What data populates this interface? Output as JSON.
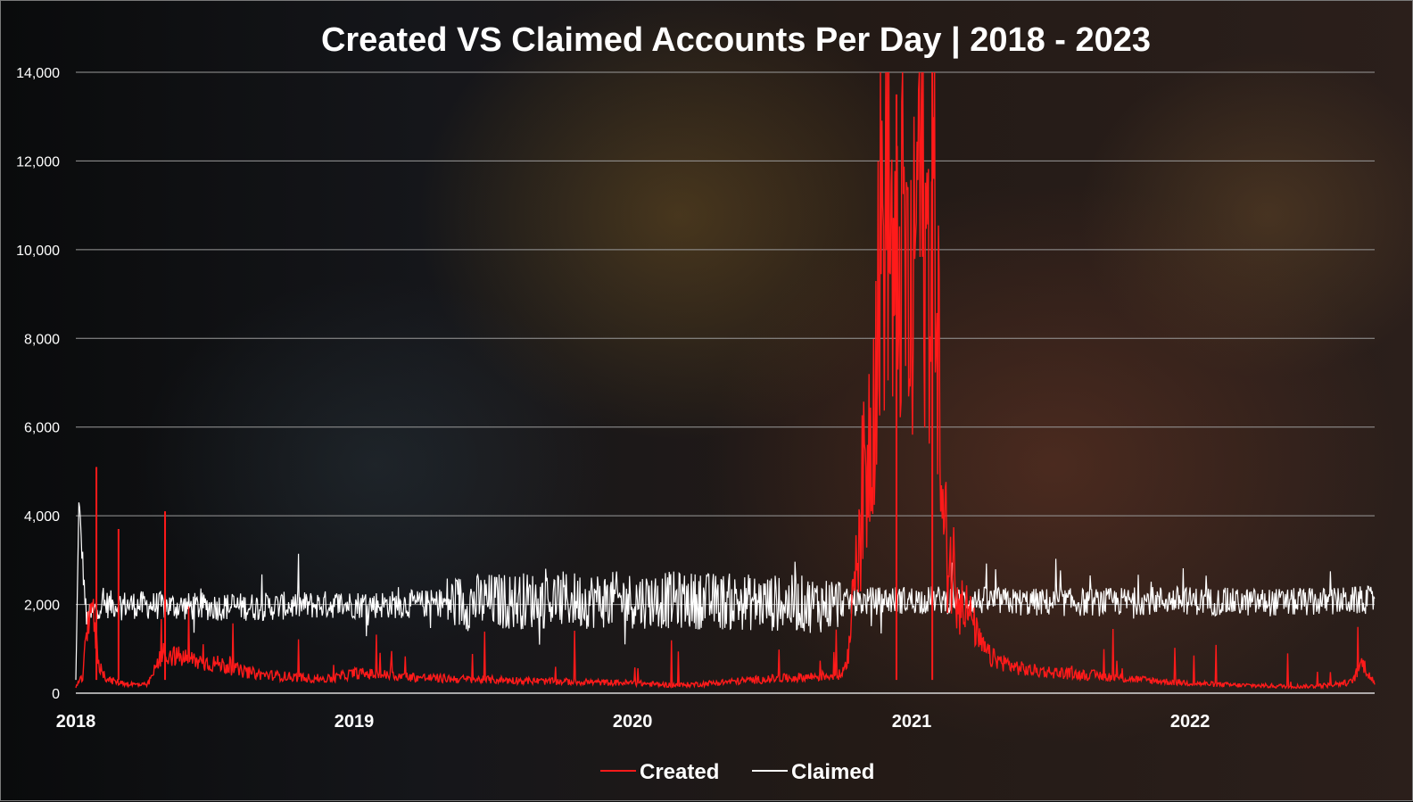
{
  "chart_data": {
    "type": "line",
    "title": "Created VS Claimed Accounts Per Day | 2018 - 2023",
    "xlabel": "",
    "ylabel": "",
    "x_range": [
      "2018-01-01",
      "2022-08-31"
    ],
    "ylim": [
      0,
      14000
    ],
    "y_ticks": [
      "0",
      "2,000",
      "4,000",
      "6,000",
      "8,000",
      "10,000",
      "12,000",
      "14,000"
    ],
    "y_tick_values": [
      0,
      2000,
      4000,
      6000,
      8000,
      10000,
      12000,
      14000
    ],
    "x_ticks": [
      "2018",
      "2019",
      "2020",
      "2021",
      "2022"
    ],
    "x_tick_values": [
      "2018-01-01",
      "2019-01-01",
      "2020-01-01",
      "2021-01-01",
      "2022-01-01"
    ],
    "grid": "horizontal",
    "legend_position": "bottom-center",
    "series": [
      {
        "name": "Created",
        "color": "#ff1a1a",
        "x": [
          "2018-01-01",
          "2018-01-10",
          "2018-01-20",
          "2018-02-01",
          "2018-02-12",
          "2018-02-25",
          "2018-03-15",
          "2018-04-05",
          "2018-04-25",
          "2018-05-20",
          "2018-06-15",
          "2018-07-10",
          "2018-08-05",
          "2018-09-01",
          "2018-10-01",
          "2018-11-01",
          "2018-12-01",
          "2019-01-01",
          "2019-02-01",
          "2019-03-01",
          "2019-04-01",
          "2019-05-01",
          "2019-06-01",
          "2019-07-01",
          "2019-08-01",
          "2019-09-01",
          "2019-10-01",
          "2019-11-01",
          "2019-12-01",
          "2020-01-01",
          "2020-02-01",
          "2020-03-01",
          "2020-04-01",
          "2020-05-01",
          "2020-06-01",
          "2020-07-01",
          "2020-08-01",
          "2020-09-01",
          "2020-10-01",
          "2020-10-10",
          "2020-10-20",
          "2020-11-01",
          "2020-11-10",
          "2020-11-20",
          "2020-12-01",
          "2020-12-10",
          "2020-12-20",
          "2021-01-01",
          "2021-01-10",
          "2021-01-20",
          "2021-02-01",
          "2021-02-10",
          "2021-02-20",
          "2021-03-01",
          "2021-03-10",
          "2021-03-20",
          "2021-04-01",
          "2021-04-15",
          "2021-05-01",
          "2021-05-15",
          "2021-06-01",
          "2021-07-01",
          "2021-08-01",
          "2021-09-01",
          "2021-10-01",
          "2021-11-01",
          "2021-12-01",
          "2022-01-01",
          "2022-02-01",
          "2022-03-01",
          "2022-04-01",
          "2022-05-01",
          "2022-06-01",
          "2022-07-01",
          "2022-08-01",
          "2022-08-15",
          "2022-08-31"
        ],
        "values": [
          150,
          350,
          2200,
          600,
          300,
          250,
          200,
          180,
          900,
          800,
          700,
          650,
          500,
          420,
          380,
          340,
          320,
          450,
          420,
          380,
          350,
          330,
          310,
          300,
          290,
          270,
          260,
          250,
          240,
          230,
          200,
          180,
          210,
          250,
          290,
          320,
          350,
          380,
          420,
          900,
          3500,
          4800,
          6500,
          9800,
          11800,
          8500,
          10500,
          7800,
          12500,
          9600,
          11200,
          3800,
          3000,
          2600,
          2100,
          1700,
          1100,
          800,
          700,
          600,
          520,
          480,
          430,
          400,
          340,
          300,
          260,
          230,
          200,
          180,
          170,
          160,
          150,
          180,
          250,
          700,
          200
        ],
        "annotations_peak": [
          {
            "x": "2018-01-28",
            "value": 5100
          },
          {
            "x": "2018-02-26",
            "value": 3700
          },
          {
            "x": "2018-04-28",
            "value": 4100
          },
          {
            "x": "2020-12-12",
            "value": 13500
          },
          {
            "x": "2021-01-28",
            "value": 14000
          }
        ]
      },
      {
        "name": "Claimed",
        "color": "#ffffff",
        "x": [
          "2018-01-01",
          "2018-01-05",
          "2018-01-15",
          "2018-02-01",
          "2018-03-01",
          "2018-06-01",
          "2018-09-01",
          "2018-12-01",
          "2019-03-01",
          "2019-06-01",
          "2019-09-01",
          "2019-12-01",
          "2020-03-01",
          "2020-06-01",
          "2020-09-01",
          "2020-12-01",
          "2021-03-01",
          "2021-06-01",
          "2021-09-01",
          "2021-12-01",
          "2022-03-01",
          "2022-06-01",
          "2022-08-31"
        ],
        "values": [
          300,
          4300,
          1600,
          2000,
          2000,
          1950,
          1950,
          2000,
          2000,
          2050,
          2100,
          2100,
          2100,
          2050,
          2000,
          2100,
          2100,
          2050,
          2050,
          2100,
          2050,
          2050,
          2100
        ]
      }
    ]
  },
  "legend": [
    {
      "label": "Created",
      "color": "#ff1a1a"
    },
    {
      "label": "Claimed",
      "color": "#ffffff"
    }
  ]
}
